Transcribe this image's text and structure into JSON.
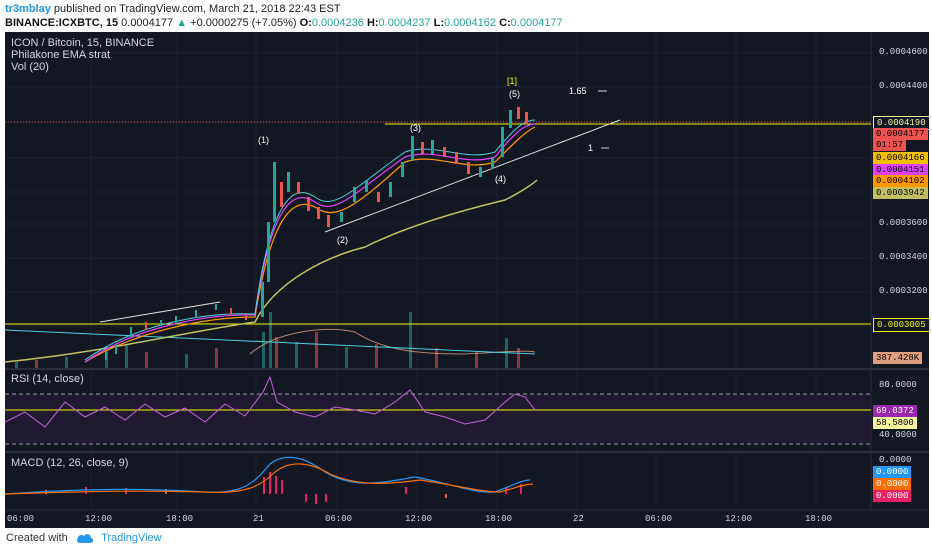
{
  "header": {
    "author": "tr3mblay",
    "published": "published on TradingView.com, March 21, 2018 22:43 EST",
    "symbol": "BINANCE:ICXBTC, 15",
    "last": "0.0004177",
    "change_arrow": "▲",
    "change": "+0.0000275 (+7.05%)",
    "o_label": "O:",
    "o_value": "0.0004236",
    "h_label": "H:",
    "h_value": "0.0004237",
    "l_label": "L:",
    "l_value": "0.0004162",
    "c_label": "C:",
    "c_value": "0.0004177"
  },
  "main_pane": {
    "title": "ICON / Bitcoin, 15, BINANCE",
    "indicator1": "Philakone EMA strat",
    "indicator2": "Vol (20)",
    "price_axis": [
      "0.0004600",
      "0.0004400",
      "0.0003600",
      "0.0003400",
      "0.0003200"
    ],
    "tags": [
      {
        "text": "0.0004190",
        "bg": "#131722",
        "fg": "#f5f5a0",
        "border": "#f5f5a0"
      },
      {
        "text": "0.0004177",
        "bg": "#ef5350",
        "fg": "#000"
      },
      {
        "text": "01:57",
        "bg": "#ef5350",
        "fg": "#000"
      },
      {
        "text": "0.0004166",
        "bg": "#f0c000",
        "fg": "#000"
      },
      {
        "text": "0.0004151",
        "bg": "#e040fb",
        "fg": "#000"
      },
      {
        "text": "0.0004102",
        "bg": "#ff9800",
        "fg": "#000"
      },
      {
        "text": "0.0003942",
        "bg": "#c0c060",
        "fg": "#000"
      },
      {
        "text": "0.0003005",
        "bg": "#131722",
        "fg": "#f5f500",
        "border": "#f5f500"
      },
      {
        "text": "387.428K",
        "bg": "#e0a080",
        "fg": "#000"
      }
    ],
    "waves": {
      "w1": "(1)",
      "w2": "(2)",
      "w3": "(3)",
      "w4": "(4)",
      "w5": "(5)",
      "bracket": "[1]"
    },
    "fib": {
      "f165": "1.65",
      "f1": "1"
    }
  },
  "rsi_pane": {
    "title": "RSI (14, close)",
    "axis": [
      "80.0000",
      "40.0000"
    ],
    "tags": [
      {
        "text": "69.0372",
        "bg": "#9c27b0",
        "fg": "#fff"
      },
      {
        "text": "58.5800",
        "bg": "#f5f5a0",
        "fg": "#000"
      }
    ]
  },
  "macd_pane": {
    "title": "MACD (12, 26, close, 9)",
    "axis": [
      "0.0000"
    ],
    "tags": [
      {
        "text": "0.0000",
        "bg": "#2196f3",
        "fg": "#fff"
      },
      {
        "text": "0.0000",
        "bg": "#ff6d00",
        "fg": "#fff"
      },
      {
        "text": "0.0000",
        "bg": "#e91e63",
        "fg": "#fff"
      }
    ]
  },
  "time_axis": [
    "06:00",
    "12:00",
    "18:00",
    "21",
    "06:00",
    "12:00",
    "18:00",
    "22",
    "06:00",
    "12:00",
    "18:00"
  ],
  "footer": {
    "created": "Created with",
    "brand": "TradingView"
  },
  "colors": {
    "bg": "#131722",
    "up": "#26a69a",
    "down": "#ef5350",
    "ema_yellow": "#c0c060",
    "ema_pink": "#e040fb",
    "ema_orange": "#ff9800",
    "ema_cyan": "#4dd0e1"
  }
}
